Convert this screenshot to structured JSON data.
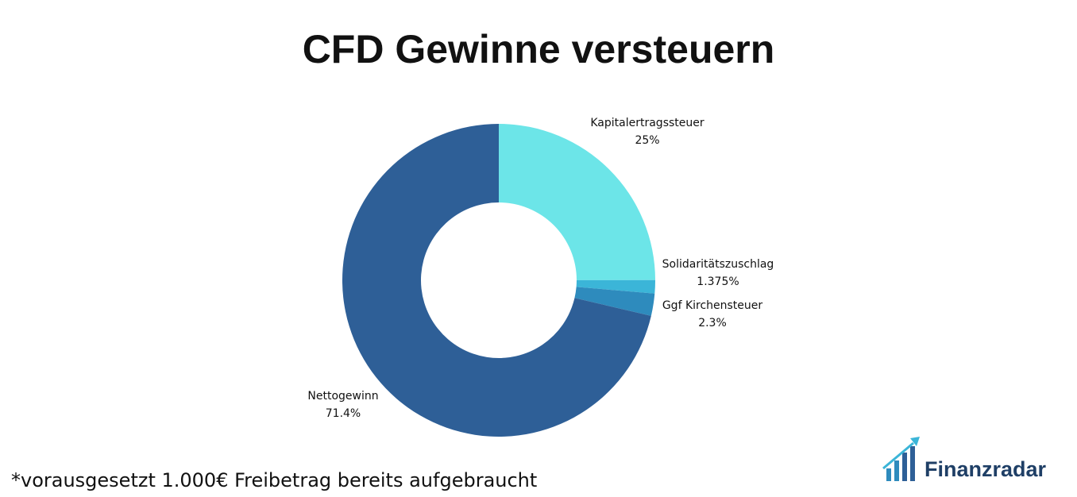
{
  "chart_data": {
    "type": "donut",
    "title": "CFD Gewinne versteuern",
    "categories": [
      "Kapitalertragssteuer",
      "Solidaritätszuschlag",
      "Ggf Kirchensteuer",
      "Nettogewinn"
    ],
    "values": [
      25,
      1.375,
      2.3,
      71.4
    ],
    "value_labels": [
      "25%",
      "1.375%",
      "2.3%",
      "71.4%"
    ],
    "colors": [
      "#6ce5e8",
      "#3bb5d8",
      "#2e8bbd",
      "#2e5f97"
    ],
    "note": "*vorausgesetzt 1.000€ Freibetrag bereits aufgebraucht"
  },
  "logo": "Finanzradar"
}
